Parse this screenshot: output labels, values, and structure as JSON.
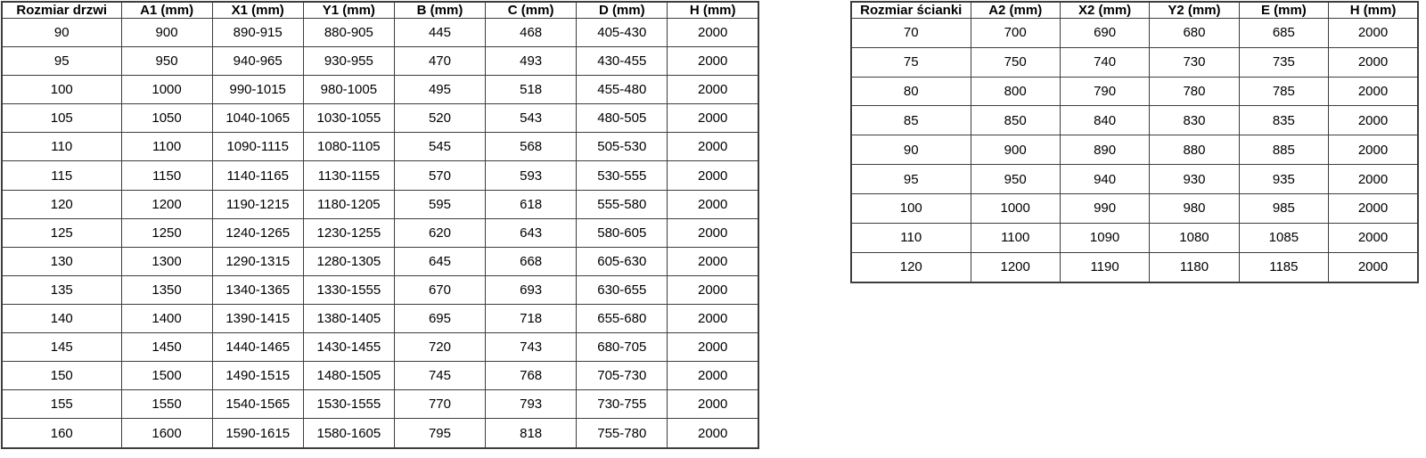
{
  "left_table": {
    "headers": [
      "Rozmiar drzwi",
      "A1 (mm)",
      "X1 (mm)",
      "Y1 (mm)",
      "B (mm)",
      "C (mm)",
      "D (mm)",
      "H (mm)"
    ],
    "rows": [
      [
        "90",
        "900",
        "890-915",
        "880-905",
        "445",
        "468",
        "405-430",
        "2000"
      ],
      [
        "95",
        "950",
        "940-965",
        "930-955",
        "470",
        "493",
        "430-455",
        "2000"
      ],
      [
        "100",
        "1000",
        "990-1015",
        "980-1005",
        "495",
        "518",
        "455-480",
        "2000"
      ],
      [
        "105",
        "1050",
        "1040-1065",
        "1030-1055",
        "520",
        "543",
        "480-505",
        "2000"
      ],
      [
        "110",
        "1100",
        "1090-1115",
        "1080-1105",
        "545",
        "568",
        "505-530",
        "2000"
      ],
      [
        "115",
        "1150",
        "1140-1165",
        "1130-1155",
        "570",
        "593",
        "530-555",
        "2000"
      ],
      [
        "120",
        "1200",
        "1190-1215",
        "1180-1205",
        "595",
        "618",
        "555-580",
        "2000"
      ],
      [
        "125",
        "1250",
        "1240-1265",
        "1230-1255",
        "620",
        "643",
        "580-605",
        "2000"
      ],
      [
        "130",
        "1300",
        "1290-1315",
        "1280-1305",
        "645",
        "668",
        "605-630",
        "2000"
      ],
      [
        "135",
        "1350",
        "1340-1365",
        "1330-1555",
        "670",
        "693",
        "630-655",
        "2000"
      ],
      [
        "140",
        "1400",
        "1390-1415",
        "1380-1405",
        "695",
        "718",
        "655-680",
        "2000"
      ],
      [
        "145",
        "1450",
        "1440-1465",
        "1430-1455",
        "720",
        "743",
        "680-705",
        "2000"
      ],
      [
        "150",
        "1500",
        "1490-1515",
        "1480-1505",
        "745",
        "768",
        "705-730",
        "2000"
      ],
      [
        "155",
        "1550",
        "1540-1565",
        "1530-1555",
        "770",
        "793",
        "730-755",
        "2000"
      ],
      [
        "160",
        "1600",
        "1590-1615",
        "1580-1605",
        "795",
        "818",
        "755-780",
        "2000"
      ]
    ]
  },
  "right_table": {
    "headers": [
      "Rozmiar ścianki",
      "A2 (mm)",
      "X2 (mm)",
      "Y2 (mm)",
      "E (mm)",
      "H (mm)"
    ],
    "rows": [
      [
        "70",
        "700",
        "690",
        "680",
        "685",
        "2000"
      ],
      [
        "75",
        "750",
        "740",
        "730",
        "735",
        "2000"
      ],
      [
        "80",
        "800",
        "790",
        "780",
        "785",
        "2000"
      ],
      [
        "85",
        "850",
        "840",
        "830",
        "835",
        "2000"
      ],
      [
        "90",
        "900",
        "890",
        "880",
        "885",
        "2000"
      ],
      [
        "95",
        "950",
        "940",
        "930",
        "935",
        "2000"
      ],
      [
        "100",
        "1000",
        "990",
        "980",
        "985",
        "2000"
      ],
      [
        "110",
        "1100",
        "1090",
        "1080",
        "1085",
        "2000"
      ],
      [
        "120",
        "1200",
        "1190",
        "1180",
        "1185",
        "2000"
      ]
    ]
  },
  "colors": {
    "border": "#3d3d3d",
    "background": "#ffffff",
    "text": "#000000"
  }
}
